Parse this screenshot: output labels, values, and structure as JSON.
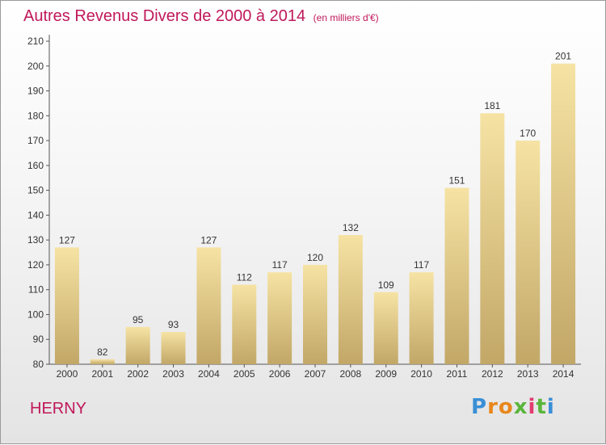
{
  "chart_data": {
    "type": "bar",
    "title": "Autres Revenus Divers de 2000 à 2014",
    "subtitle": "(en milliers d'€)",
    "categories": [
      "2000",
      "2001",
      "2002",
      "2003",
      "2004",
      "2005",
      "2006",
      "2007",
      "2008",
      "2009",
      "2010",
      "2011",
      "2012",
      "2013",
      "2014"
    ],
    "values": [
      127,
      82,
      95,
      93,
      127,
      112,
      117,
      120,
      132,
      109,
      117,
      151,
      181,
      170,
      201
    ],
    "ylim": [
      80,
      210
    ],
    "yticks": [
      80,
      90,
      100,
      110,
      120,
      130,
      140,
      150,
      160,
      170,
      180,
      190,
      200,
      210
    ],
    "grid": false,
    "bar_color_top": "#f6e3a4",
    "bar_color_bottom": "#c2a767",
    "title_color": "#c0185a"
  },
  "footer": {
    "place": "HERNY"
  },
  "logo": {
    "letters": [
      "P",
      "r",
      "o",
      "x",
      "i",
      "t",
      "i"
    ],
    "colors": [
      "#3a8fd6",
      "#e8871c",
      "#e8871c",
      "#5ab53b",
      "#e23b6f",
      "#5ab53b",
      "#3a8fd6"
    ]
  }
}
